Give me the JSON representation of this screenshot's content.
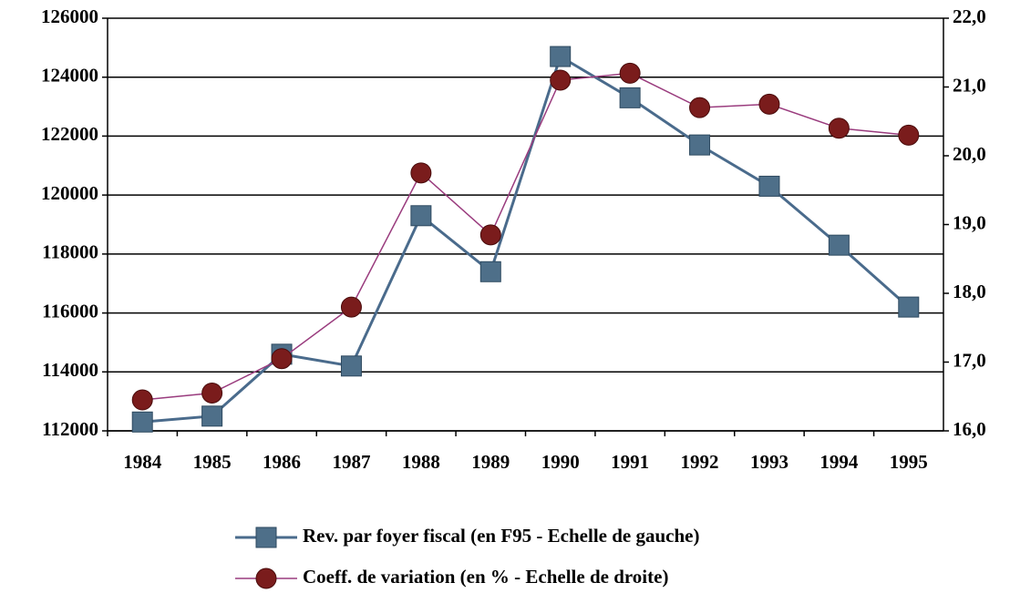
{
  "chart_data": {
    "type": "line",
    "categories": [
      "1984",
      "1985",
      "1986",
      "1987",
      "1988",
      "1989",
      "1990",
      "1991",
      "1992",
      "1993",
      "1994",
      "1995"
    ],
    "series": [
      {
        "name": "Rev. par foyer fiscal (en F95 - Echelle de gauche)",
        "color": "#4a6b8c",
        "marker_color": "#4e6f89",
        "marker": "square",
        "values": [
          112300,
          112500,
          114600,
          114200,
          119300,
          117400,
          124700,
          123300,
          121700,
          120300,
          118300,
          116200
        ]
      },
      {
        "name": "Coeff. de variation (en % - Echelle de droite)",
        "color": "#9a3c7e",
        "marker_color": "#7a1c1c",
        "marker": "circle",
        "axis": "y2",
        "values": [
          16.45,
          16.55,
          17.05,
          17.8,
          19.75,
          18.85,
          21.1,
          21.2,
          20.7,
          20.75,
          20.4,
          20.3
        ]
      }
    ],
    "ylim": [
      112000,
      126000
    ],
    "yticks": [
      112000,
      114000,
      116000,
      118000,
      120000,
      122000,
      124000,
      126000
    ],
    "y2lim": [
      16,
      22
    ],
    "y2ticks": [
      {
        "value": 16,
        "label": "16,0"
      },
      {
        "value": 17,
        "label": "17,0"
      },
      {
        "value": 18,
        "label": "18,0"
      },
      {
        "value": 19,
        "label": "19,0"
      },
      {
        "value": 20,
        "label": "20,0"
      },
      {
        "value": 21,
        "label": "21,0"
      },
      {
        "value": 22,
        "label": "22,0"
      }
    ],
    "grid": true
  }
}
